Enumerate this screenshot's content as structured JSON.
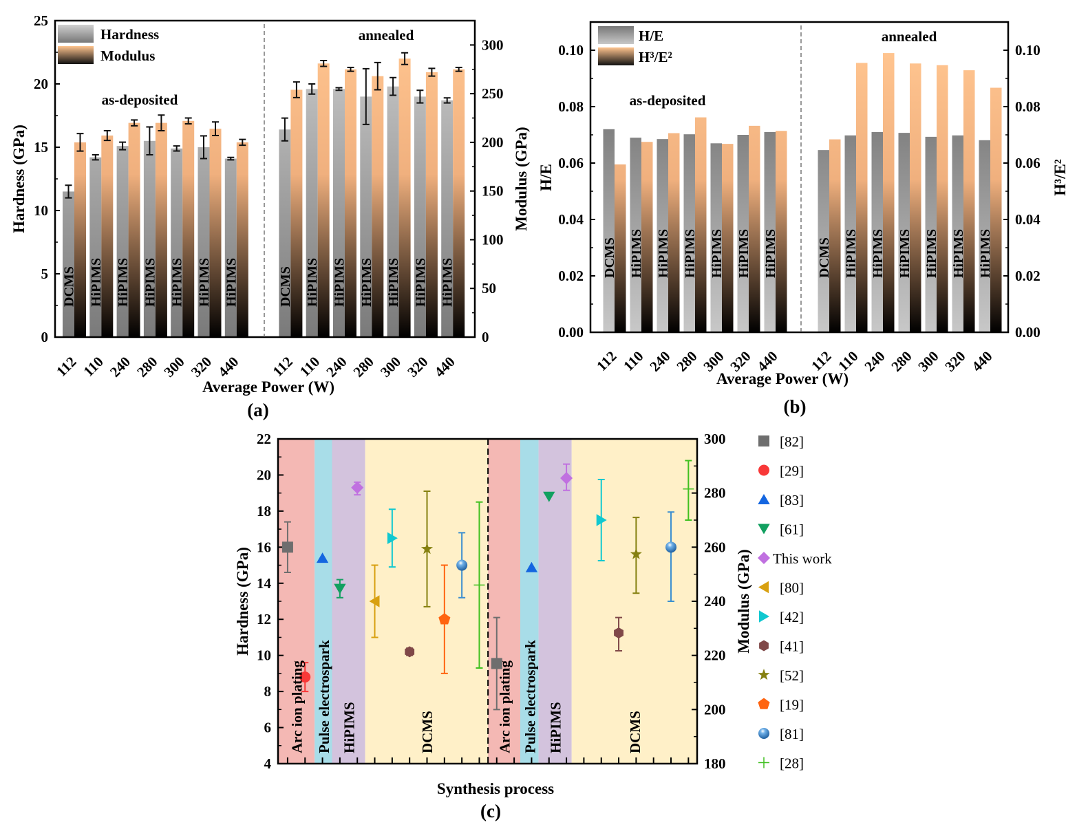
{
  "chart_data": [
    {
      "type": "bar",
      "panel_label": "(a)",
      "xlabel": "Average Power (W)",
      "ylabel": "Hardness (GPa)",
      "y2label": "Modulus (GPa)",
      "ylim": [
        0,
        25
      ],
      "yticks": [
        0,
        5,
        10,
        15,
        20,
        25
      ],
      "y2lim": [
        0,
        325
      ],
      "y2ticks": [
        0,
        50,
        100,
        150,
        200,
        250,
        300
      ],
      "legend_position": "top-left",
      "legend": [
        "Hardness",
        "Modulus"
      ],
      "groups": [
        {
          "name": "as-deposited",
          "categories": [
            "112",
            "110",
            "240",
            "280",
            "300",
            "320",
            "440"
          ],
          "processes": [
            "DCMS",
            "HiPIMS",
            "HiPIMS",
            "HiPIMS",
            "HiPIMS",
            "HiPIMS",
            "HiPIMS"
          ],
          "series": [
            {
              "name": "Hardness",
              "axis": "left",
              "values": [
                11.5,
                14.2,
                15.1,
                15.5,
                14.9,
                15.0,
                14.1
              ],
              "errors": [
                0.5,
                0.2,
                0.3,
                1.1,
                0.2,
                0.9,
                0.1
              ]
            },
            {
              "name": "Modulus",
              "axis": "right",
              "values": [
                200,
                207,
                220,
                220,
                222,
                214,
                200
              ],
              "errors": [
                9,
                5,
                3,
                8,
                3,
                7,
                3
              ]
            }
          ]
        },
        {
          "name": "annealed",
          "categories": [
            "112",
            "110",
            "240",
            "280",
            "300",
            "320",
            "440"
          ],
          "processes": [
            "DCMS",
            "HiPIMS",
            "HiPIMS",
            "HiPIMS",
            "HiPIMS",
            "HiPIMS",
            "HiPIMS"
          ],
          "series": [
            {
              "name": "Hardness",
              "axis": "left",
              "values": [
                16.4,
                19.6,
                19.6,
                19.0,
                19.8,
                19.0,
                18.7
              ],
              "errors": [
                0.9,
                0.4,
                0.1,
                2.2,
                0.7,
                0.5,
                0.2
              ]
            },
            {
              "name": "Modulus",
              "axis": "right",
              "values": [
                254,
                281,
                275,
                268,
                286,
                272,
                275
              ],
              "errors": [
                8,
                3,
                2,
                14,
                6,
                4,
                2
              ]
            }
          ]
        }
      ]
    },
    {
      "type": "bar",
      "panel_label": "(b)",
      "xlabel": "Average Power (W)",
      "ylabel": "H/E",
      "y2label": "H³/E²",
      "ylim": [
        0,
        0.11
      ],
      "yticks": [
        "0.00",
        "0.02",
        "0.04",
        "0.06",
        "0.08",
        "0.10"
      ],
      "y2lim": [
        0,
        0.11
      ],
      "y2ticks": [
        "0.00",
        "0.02",
        "0.04",
        "0.06",
        "0.08",
        "0.10"
      ],
      "legend_position": "top-left",
      "legend": [
        "H/E",
        "H³/E²"
      ],
      "groups": [
        {
          "name": "as-deposited",
          "categories": [
            "112",
            "110",
            "240",
            "280",
            "300",
            "320",
            "440"
          ],
          "processes": [
            "DCMS",
            "HiPIMS",
            "HiPIMS",
            "HiPIMS",
            "HiPIMS",
            "HiPIMS",
            "HiPIMS"
          ],
          "series": [
            {
              "name": "H/E",
              "axis": "left",
              "values": [
                0.072,
                0.069,
                0.0685,
                0.0702,
                0.067,
                0.07,
                0.071
              ]
            },
            {
              "name": "H³/E²",
              "axis": "right",
              "values": [
                0.0595,
                0.0675,
                0.0706,
                0.0762,
                0.0668,
                0.0732,
                0.0714
              ]
            }
          ]
        },
        {
          "name": "annealed",
          "categories": [
            "112",
            "110",
            "240",
            "280",
            "300",
            "320",
            "440"
          ],
          "processes": [
            "DCMS",
            "HiPIMS",
            "HiPIMS",
            "HiPIMS",
            "HiPIMS",
            "HiPIMS",
            "HiPIMS"
          ],
          "series": [
            {
              "name": "H/E",
              "axis": "left",
              "values": [
                0.0646,
                0.0698,
                0.071,
                0.0707,
                0.0693,
                0.0698,
                0.0681
              ]
            },
            {
              "name": "H³/E²",
              "axis": "right",
              "values": [
                0.0684,
                0.0955,
                0.099,
                0.0953,
                0.0947,
                0.0929,
                0.0867
              ]
            }
          ]
        }
      ]
    },
    {
      "type": "scatter",
      "panel_label": "(c)",
      "xlabel": "Synthesis process",
      "ylabel": "Hardness (GPa)",
      "y2label": "Modulus (GPa)",
      "ylim": [
        4,
        22
      ],
      "yticks": [
        4,
        6,
        8,
        10,
        12,
        14,
        16,
        18,
        20,
        22
      ],
      "y2lim": [
        180,
        300
      ],
      "y2ticks": [
        180,
        200,
        220,
        240,
        260,
        280,
        300
      ],
      "xlim": [
        0.45,
        24.5
      ],
      "legend_position": "right-outside",
      "sections": [
        {
          "label": "Arc ion plating",
          "from": 0.45,
          "to": 2.55,
          "color": "#f4b8b4"
        },
        {
          "label": "Pulse electrospark",
          "from": 2.55,
          "to": 3.55,
          "color": "#a8dde8"
        },
        {
          "label": "HiPIMS",
          "from": 3.55,
          "to": 5.45,
          "color": "#d3c3dd"
        },
        {
          "label": "DCMS",
          "from": 5.45,
          "to": 12.5,
          "color": "#fff0c8"
        },
        {
          "label": "Arc ion plating",
          "from": 12.5,
          "to": 14.35,
          "color": "#f4b8b4"
        },
        {
          "label": "Pulse electrospark",
          "from": 14.35,
          "to": 15.4,
          "color": "#a8dde8"
        },
        {
          "label": "HiPIMS",
          "from": 15.4,
          "to": 17.3,
          "color": "#d3c3dd"
        },
        {
          "label": "DCMS",
          "from": 17.3,
          "to": 24.5,
          "color": "#fff0c8"
        }
      ],
      "divider_at": 12.5,
      "series": [
        {
          "name": "[82]",
          "marker": "square",
          "color": "#6e6e6e",
          "points": [
            {
              "x": 1,
              "axis": "left",
              "y": 16.0,
              "err": [
                14.6,
                17.4
              ]
            },
            {
              "x": 13,
              "axis": "right",
              "y": 217,
              "err": [
                200,
                234
              ]
            }
          ]
        },
        {
          "name": "[29]",
          "marker": "circle",
          "color": "#f83838",
          "points": [
            {
              "x": 2,
              "axis": "left",
              "y": 8.8,
              "err": [
                8.0,
                9.6
              ]
            }
          ]
        },
        {
          "name": "[83]",
          "marker": "triangle-up",
          "color": "#1466e0",
          "points": [
            {
              "x": 3,
              "axis": "left",
              "y": 15.4
            },
            {
              "x": 15,
              "axis": "right",
              "y": 252.5
            }
          ]
        },
        {
          "name": "[61]",
          "marker": "triangle-down",
          "color": "#12a060",
          "points": [
            {
              "x": 4,
              "axis": "left",
              "y": 13.7,
              "err": [
                13.2,
                14.2
              ]
            },
            {
              "x": 16,
              "axis": "right",
              "y": 278.7
            }
          ]
        },
        {
          "name": "This work",
          "marker": "diamond",
          "color": "#c070e0",
          "points": [
            {
              "x": 5,
              "axis": "left",
              "y": 19.3,
              "err": [
                18.9,
                19.6
              ]
            },
            {
              "x": 17,
              "axis": "right",
              "y": 285.5,
              "err": [
                281,
                290.7
              ]
            }
          ]
        },
        {
          "name": "[80]",
          "marker": "triangle-left",
          "color": "#d8a010",
          "points": [
            {
              "x": 6,
              "axis": "left",
              "y": 13.0,
              "err": [
                11.0,
                15.0
              ]
            }
          ]
        },
        {
          "name": "[42]",
          "marker": "triangle-right",
          "color": "#10c8d0",
          "points": [
            {
              "x": 7,
              "axis": "left",
              "y": 16.5,
              "err": [
                14.9,
                18.1
              ]
            },
            {
              "x": 19,
              "axis": "right",
              "y": 270,
              "err": [
                255,
                285
              ]
            }
          ]
        },
        {
          "name": "[41]",
          "marker": "hexagon",
          "color": "#804848",
          "points": [
            {
              "x": 8,
              "axis": "left",
              "y": 10.2,
              "err": [
                10.0,
                10.4
              ]
            },
            {
              "x": 20,
              "axis": "right",
              "y": 228.3,
              "err": [
                221.7,
                234
              ]
            }
          ]
        },
        {
          "name": "[52]",
          "marker": "star",
          "color": "#858010",
          "points": [
            {
              "x": 9,
              "axis": "left",
              "y": 15.9,
              "err": [
                12.7,
                19.1
              ]
            },
            {
              "x": 21,
              "axis": "right",
              "y": 257.4,
              "err": [
                243,
                271
              ]
            }
          ]
        },
        {
          "name": "[19]",
          "marker": "pentagon",
          "color": "#ff6410",
          "points": [
            {
              "x": 10,
              "axis": "left",
              "y": 12.0,
              "err": [
                9.0,
                15.0
              ]
            }
          ]
        },
        {
          "name": "[81]",
          "marker": "sphere",
          "color": "#3b8ed0",
          "points": [
            {
              "x": 11,
              "axis": "left",
              "y": 15.0,
              "err": [
                13.2,
                16.8
              ]
            },
            {
              "x": 23,
              "axis": "right",
              "y": 260,
              "err": [
                240,
                273
              ]
            }
          ]
        },
        {
          "name": "[28]",
          "marker": "plus",
          "color": "#40c020",
          "points": [
            {
              "x": 12,
              "axis": "left",
              "y": 13.9,
              "err": [
                9.3,
                18.5
              ]
            },
            {
              "x": 24,
              "axis": "right",
              "y": 281.5,
              "err": [
                270,
                292
              ]
            }
          ]
        }
      ]
    }
  ]
}
